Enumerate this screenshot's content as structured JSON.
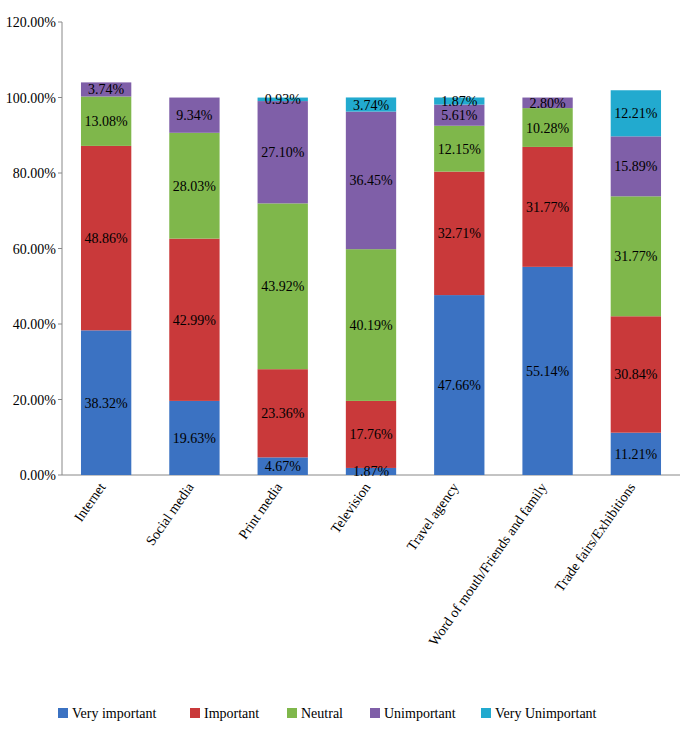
{
  "chart_data": {
    "type": "bar",
    "stacked": true,
    "data_labels": true,
    "grid": false,
    "legend": "bottom",
    "categories": [
      "Internet",
      "Social media",
      "Print media",
      "Television",
      "Travel agency",
      "Word of mouth/Friends and family",
      "Trade fairs/Exhibitions"
    ],
    "ylim": [
      0,
      120
    ],
    "yticks": [
      {
        "value": 0,
        "label": "0.00%"
      },
      {
        "value": 20,
        "label": "20.00%"
      },
      {
        "value": 40,
        "label": "40.00%"
      },
      {
        "value": 60,
        "label": "60.00%"
      },
      {
        "value": 80,
        "label": "80.00%"
      },
      {
        "value": 100,
        "label": "100.00%"
      },
      {
        "value": 120,
        "label": "120.00%"
      }
    ],
    "series": [
      {
        "name": "Very important",
        "color": "#3b72c2",
        "values": [
          38.32,
          19.63,
          4.67,
          1.87,
          47.66,
          55.14,
          11.21
        ],
        "value_labels": [
          "38.32%",
          "19.63%",
          "4.67%",
          "1.87%",
          "47.66%",
          "55.14%",
          "11.21%"
        ]
      },
      {
        "name": "Important",
        "color": "#c9393a",
        "values": [
          48.86,
          42.99,
          23.36,
          17.76,
          32.71,
          31.77,
          30.84
        ],
        "value_labels": [
          "48.86%",
          "42.99%",
          "23.36%",
          "17.76%",
          "32.71%",
          "31.77%",
          "30.84%"
        ]
      },
      {
        "name": "Neutral",
        "color": "#7fb74b",
        "values": [
          13.08,
          28.03,
          43.92,
          40.19,
          12.15,
          10.28,
          31.77
        ],
        "value_labels": [
          "13.08%",
          "28.03%",
          "43.92%",
          "40.19%",
          "12.15%",
          "10.28%",
          "31.77%"
        ]
      },
      {
        "name": "Unimportant",
        "color": "#7f5fa8",
        "values": [
          3.74,
          9.34,
          27.1,
          36.45,
          5.61,
          2.8,
          15.89
        ],
        "value_labels": [
          "3.74%",
          "9.34%",
          "27.10%",
          "36.45%",
          "5.61%",
          "2.80%",
          "15.89%"
        ]
      },
      {
        "name": "Very Unimportant",
        "color": "#22aacf",
        "values": [
          null,
          null,
          0.93,
          3.74,
          1.87,
          null,
          12.21
        ],
        "value_labels": [
          null,
          null,
          "0.93%",
          "3.74%",
          "1.87%",
          null,
          "12.21%"
        ]
      }
    ]
  }
}
